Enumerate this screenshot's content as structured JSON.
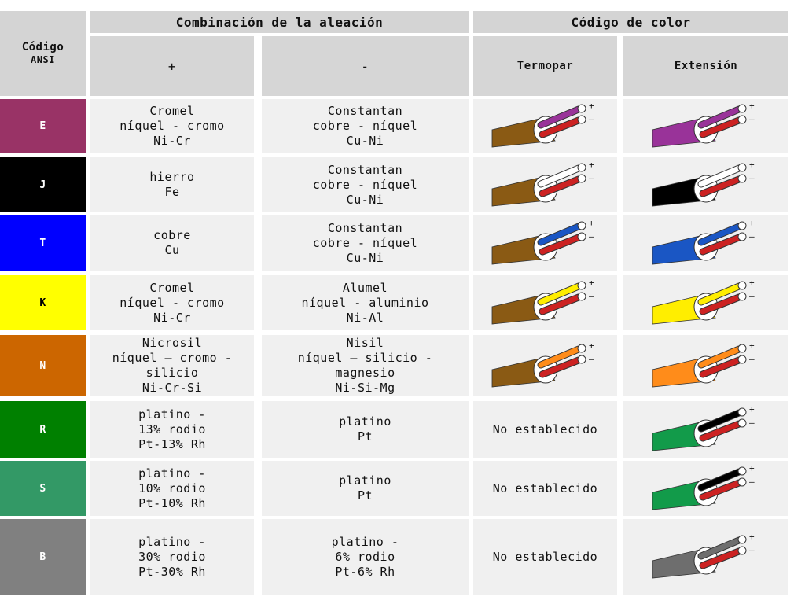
{
  "header": {
    "ansi_title": "Código",
    "ansi_sub": "ANSI",
    "alloy_title": "Combinación de la aleación",
    "color_title": "Código de color",
    "plus": "+",
    "minus": "-",
    "thermocouple": "Termopar",
    "extension": "Extensión"
  },
  "rows": [
    {
      "code": "E",
      "code_color": "#993366",
      "positive": [
        "Cromel",
        "níquel - cromo",
        "Ni-Cr"
      ],
      "negative": [
        "Constantan",
        "cobre - níquel",
        "Cu-Ni"
      ],
      "tc": {
        "jacket": "#8a5a14",
        "plus": "#993399",
        "minus": "#cc2222"
      },
      "ext": {
        "jacket": "#993399",
        "plus": "#993399",
        "minus": "#cc2222"
      },
      "tc_text": ""
    },
    {
      "code": "J",
      "code_color": "#000000",
      "positive": [
        "hierro",
        "Fe"
      ],
      "negative": [
        "Constantan",
        "cobre - níquel",
        "Cu-Ni"
      ],
      "tc": {
        "jacket": "#8a5a14",
        "plus": "#ffffff",
        "minus": "#cc2222"
      },
      "ext": {
        "jacket": "#000000",
        "plus": "#ffffff",
        "minus": "#cc2222"
      },
      "tc_text": ""
    },
    {
      "code": "T",
      "code_color": "#0000ff",
      "positive": [
        "cobre",
        "Cu"
      ],
      "negative": [
        "Constantan",
        "cobre - níquel",
        "Cu-Ni"
      ],
      "tc": {
        "jacket": "#8a5a14",
        "plus": "#1a56c4",
        "minus": "#cc2222"
      },
      "ext": {
        "jacket": "#1a56c4",
        "plus": "#1a56c4",
        "minus": "#cc2222"
      },
      "tc_text": ""
    },
    {
      "code": "K",
      "code_color": "#ffff00",
      "positive": [
        "Cromel",
        "níquel - cromo",
        "Ni-Cr"
      ],
      "negative": [
        "Alumel",
        "níquel - aluminio",
        "Ni-Al"
      ],
      "tc": {
        "jacket": "#8a5a14",
        "plus": "#ffee00",
        "minus": "#cc2222"
      },
      "ext": {
        "jacket": "#ffee00",
        "plus": "#ffee00",
        "minus": "#cc2222"
      },
      "tc_text": ""
    },
    {
      "code": "N",
      "code_color": "#cc6600",
      "positive": [
        "Nicrosil",
        "níquel – cromo -",
        "silicio",
        "Ni-Cr-Si"
      ],
      "negative": [
        "Nisil",
        "níquel – silicio -",
        "magnesio",
        "Ni-Si-Mg"
      ],
      "tc": {
        "jacket": "#8a5a14",
        "plus": "#ff8c1a",
        "minus": "#cc2222"
      },
      "ext": {
        "jacket": "#ff8c1a",
        "plus": "#ff8c1a",
        "minus": "#cc2222"
      },
      "tc_text": ""
    },
    {
      "code": "R",
      "code_color": "#008000",
      "positive": [
        "platino -",
        "13% rodio",
        "Pt-13% Rh"
      ],
      "negative": [
        "platino",
        "Pt"
      ],
      "tc": null,
      "ext": {
        "jacket": "#129b4a",
        "plus": "#000000",
        "minus": "#cc2222"
      },
      "tc_text": "No establecido"
    },
    {
      "code": "S",
      "code_color": "#339966",
      "positive": [
        "platino -",
        "10% rodio",
        "Pt-10% Rh"
      ],
      "negative": [
        "platino",
        "Pt"
      ],
      "tc": null,
      "ext": {
        "jacket": "#129b4a",
        "plus": "#000000",
        "minus": "#cc2222"
      },
      "tc_text": "No establecido"
    },
    {
      "code": "B",
      "code_color": "#808080",
      "positive": [
        "platino -",
        "30% rodio",
        "Pt-30% Rh"
      ],
      "negative": [
        "platino -",
        "6% rodio",
        "Pt-6% Rh"
      ],
      "tc": null,
      "ext": {
        "jacket": "#6e6e6e",
        "plus": "#6e6e6e",
        "minus": "#cc2222"
      },
      "tc_text": "No establecido"
    }
  ]
}
